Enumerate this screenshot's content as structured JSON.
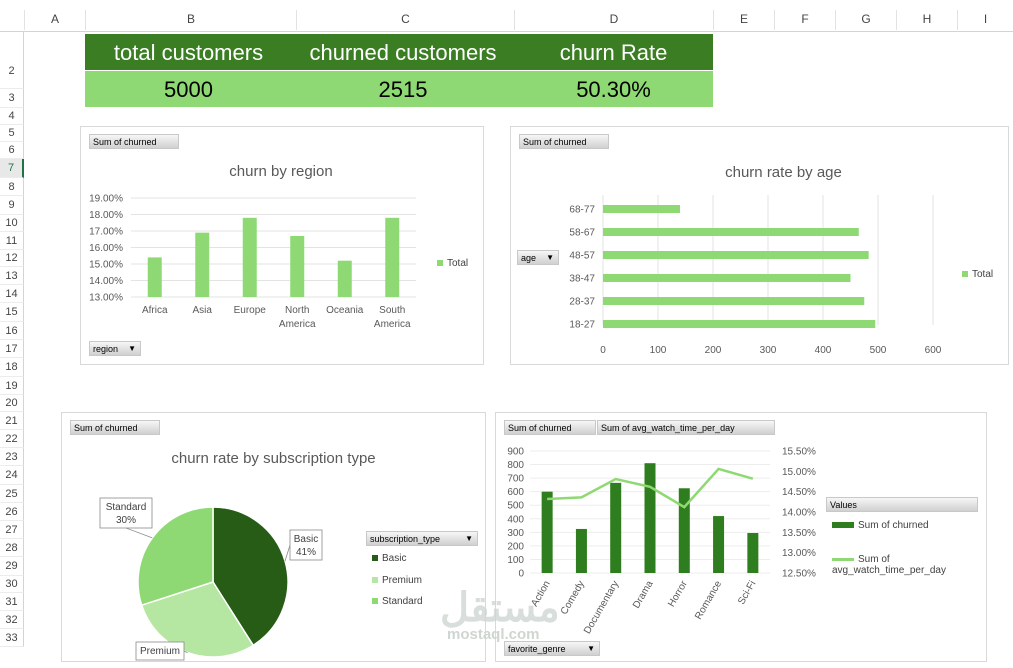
{
  "columns": [
    "A",
    "B",
    "C",
    "D",
    "E",
    "F",
    "G",
    "H",
    "I"
  ],
  "rows": [
    "2",
    "3",
    "4",
    "5",
    "6",
    "7",
    "8",
    "9",
    "10",
    "11",
    "12",
    "13",
    "14",
    "15",
    "16",
    "17",
    "18",
    "19",
    "20",
    "21",
    "22",
    "23",
    "24",
    "25",
    "26",
    "27",
    "28",
    "29",
    "30",
    "31",
    "32",
    "33"
  ],
  "selected_row": "7",
  "kpis": {
    "headers": [
      "total customers",
      "churned customers",
      "churn Rate"
    ],
    "values": [
      "5000",
      "2515",
      "50.30%"
    ]
  },
  "colors": {
    "header_green": "#3b7d23",
    "value_green": "#8ed973",
    "bar_light": "#8ed973",
    "dark_green": "#2e7d1f",
    "pie_dark": "#265c15",
    "pie_mid": "#b5e6a2",
    "pie_light": "#8ed973"
  },
  "charts": {
    "region": {
      "field_value": "Sum of churned",
      "field_axis": "region",
      "legend": "Total"
    },
    "age": {
      "field_value": "Sum of churned",
      "field_axis": "age",
      "legend": "Total"
    },
    "subscription": {
      "field_value": "Sum of churned",
      "legend_title": "subscription_type"
    },
    "genre": {
      "field_value1": "Sum of churned",
      "field_value2": "Sum of avg_watch_time_per_day",
      "field_axis": "favorite_genre",
      "legend_title": "Values",
      "legend_series1": "Sum of churned",
      "legend_series2": "Sum of avg_watch_time_per_day"
    }
  },
  "chart_data": [
    {
      "type": "bar",
      "title": "churn by region",
      "categories": [
        "Africa",
        "Asia",
        "Europe",
        "North America",
        "Oceania",
        "South America"
      ],
      "values": [
        15.4,
        16.9,
        17.8,
        16.7,
        15.2,
        17.8
      ],
      "ylim": [
        13.0,
        19.0
      ],
      "yticks": [
        "19.00%",
        "18.00%",
        "17.00%",
        "16.00%",
        "15.00%",
        "14.00%",
        "13.00%"
      ],
      "series_name": "Total"
    },
    {
      "type": "bar",
      "orientation": "horizontal",
      "title": "churn rate by age",
      "categories": [
        "68-77",
        "58-67",
        "48-57",
        "38-47",
        "28-37",
        "18-27"
      ],
      "values": [
        140,
        465,
        483,
        450,
        475,
        495
      ],
      "xlim": [
        0,
        600
      ],
      "xticks": [
        "0",
        "100",
        "200",
        "300",
        "400",
        "500",
        "600"
      ],
      "series_name": "Total"
    },
    {
      "type": "pie",
      "title": "churn rate by subscription type",
      "labels": [
        "Basic",
        "Premium",
        "Standard"
      ],
      "values": [
        41,
        29,
        30
      ],
      "data_labels": [
        {
          "name": "Basic",
          "pct": "41%"
        },
        {
          "name": "Premium",
          "pct": ""
        },
        {
          "name": "Standard",
          "pct": "30%"
        }
      ]
    },
    {
      "type": "bar+line",
      "title": "",
      "categories": [
        "Action",
        "Comedy",
        "Documentary",
        "Drama",
        "Horror",
        "Romance",
        "Sci-Fi"
      ],
      "series": [
        {
          "name": "Sum of churned",
          "type": "bar",
          "values": [
            600,
            325,
            665,
            810,
            625,
            420,
            295
          ]
        },
        {
          "name": "Sum of avg_watch_time_per_day",
          "type": "line",
          "values": [
            14.32,
            14.36,
            14.81,
            14.62,
            14.12,
            15.06,
            14.82
          ]
        }
      ],
      "ylim_left": [
        0,
        900
      ],
      "yticks_left": [
        "900",
        "800",
        "700",
        "600",
        "500",
        "400",
        "300",
        "200",
        "100",
        "0"
      ],
      "ylim_right": [
        12.5,
        15.5
      ],
      "yticks_right": [
        "15.50%",
        "15.00%",
        "14.50%",
        "14.00%",
        "13.50%",
        "13.00%",
        "12.50%"
      ]
    }
  ],
  "watermark": {
    "arabic": "مستقل",
    "latin": "mostaql.com"
  }
}
